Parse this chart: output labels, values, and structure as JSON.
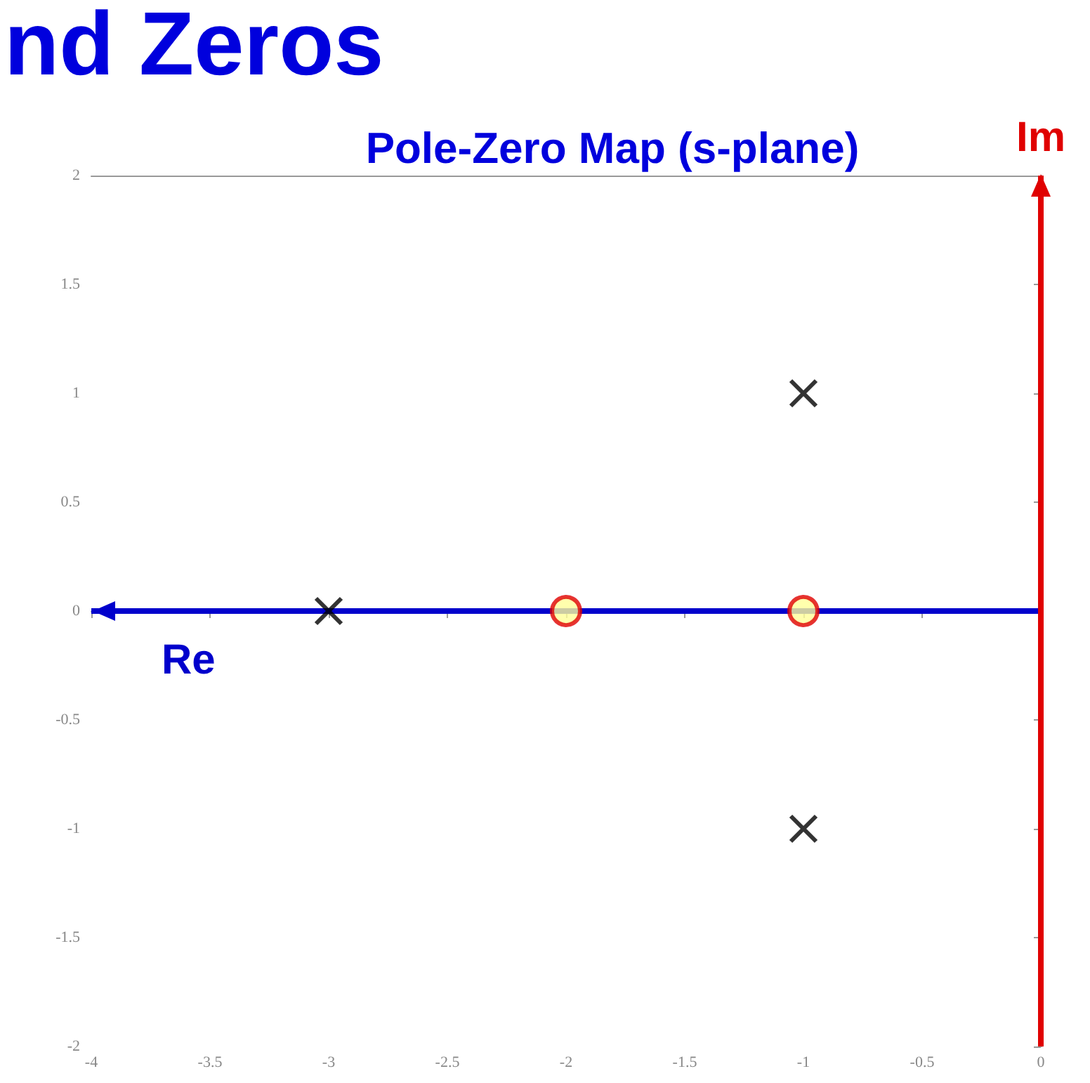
{
  "chart_data": {
    "type": "scatter",
    "title": "nd Zeros",
    "subtitle": "Pole-Zero Map (s-plane)",
    "series": [
      {
        "color": "#000000",
        "marker": "cross",
        "x": [
          -3,
          -1,
          -1
        ],
        "values": [
          0,
          1,
          -1
        ]
      },
      {
        "color": "#e00000",
        "marker": "circle",
        "x": [
          -2,
          -1
        ],
        "values": [
          0,
          0
        ]
      }
    ],
    "xlim": [
      -4,
      0
    ],
    "xticks": [
      -4,
      -3.5,
      -3,
      -2.5,
      -2,
      -1.5,
      -1,
      -0.5,
      0
    ],
    "ylim": [
      -2,
      2
    ],
    "yticks": [
      -2,
      -1.5,
      -1,
      -0.5,
      0,
      0.5,
      1,
      1.5,
      2
    ],
    "ref_lines": [
      {
        "axis": "y",
        "value": 0,
        "label": "Re",
        "color": "#0000cc"
      },
      {
        "axis": "x",
        "value": 0,
        "label": "Im",
        "color": "#e00000"
      }
    ],
    "grid": false
  }
}
